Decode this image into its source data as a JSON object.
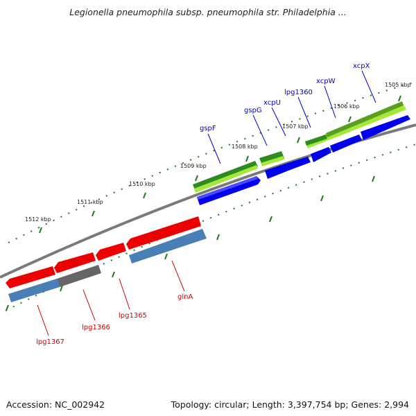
{
  "title": "Legionella pneumophila subsp. pneumophila str. Philadelphia ...",
  "footer": {
    "accession": "Accession: NC_002942",
    "topology": "Topology: circular; Length: 3,397,754 bp; Genes: 2,994"
  },
  "ruler_labels": [
    "1505 kbp",
    "1506 kbp",
    "1507 kbp",
    "1508 kbp",
    "1509 kbp",
    "1510 kbp",
    "1511 kbp",
    "1512 kbp"
  ],
  "gene_labels_forward": [
    "xcpX",
    "xcpW",
    "lpg1360",
    "xcpU",
    "gspG",
    "gspF"
  ],
  "gene_labels_reverse": [
    "glnA",
    "lpg1365",
    "lpg1366",
    "lpg1367"
  ],
  "colors": {
    "forward_cds": "#0000ee",
    "forward_gene": "#2e8b22",
    "forward_gene_light": "#a6e83a",
    "reverse_cds": "#ee0000",
    "reverse_gene": "#4a7fb5",
    "pseudo": "#666666",
    "backbone": "#808080",
    "tick": "#1a7a1a"
  }
}
